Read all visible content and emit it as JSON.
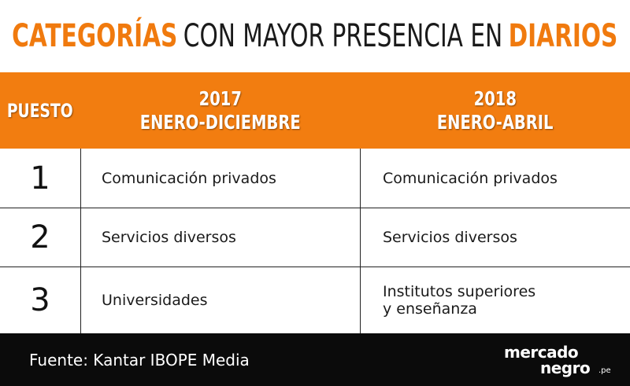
{
  "title": {
    "part1": "CATEGORÍAS",
    "part2": "CON MAYOR PRESENCIA EN",
    "part3": "DIARIOS"
  },
  "header": {
    "puesto": "PUESTO",
    "col2017_year": "2017",
    "col2017_period": "ENERO-DICIEMBRE",
    "col2018_year": "2018",
    "col2018_period": "ENERO-ABRIL"
  },
  "rows": [
    {
      "puesto": "1",
      "y2017": "Comunicación privados",
      "y2018": [
        "Comunicación privados"
      ]
    },
    {
      "puesto": "2",
      "y2017": "Servicios diversos",
      "y2018": [
        "Servicios diversos"
      ]
    },
    {
      "puesto": "3",
      "y2017": "Universidades",
      "y2018": [
        "Institutos superiores",
        "y enseñanza"
      ]
    }
  ],
  "footer": {
    "source": "Fuente: Kantar IBOPE Media",
    "logo_line1": "mercado",
    "logo_line2": "negro",
    "logo_suffix": ".pe"
  },
  "colors": {
    "accent": "#f27d10",
    "footer_bg": "#0b0b0b"
  }
}
